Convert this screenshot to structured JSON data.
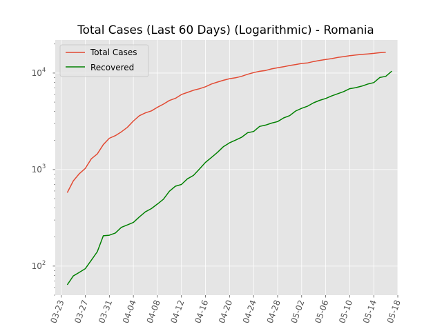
{
  "chart_data": {
    "type": "line",
    "title": "Total Cases (Last 60 Days) (Logarithmic) - Romania",
    "xlabel": "",
    "ylabel": "",
    "yscale": "log",
    "ylim": [
      50,
      22000
    ],
    "xlim": [
      "2020-03-22",
      "2020-05-18"
    ],
    "grid": true,
    "legend_position": "upper-left",
    "x_tick_labels": [
      "03-23",
      "03-27",
      "03-31",
      "04-04",
      "04-08",
      "04-12",
      "04-16",
      "04-20",
      "04-24",
      "04-28",
      "05-02",
      "05-06",
      "05-10",
      "05-14",
      "05-18"
    ],
    "y_tick_labels": [
      {
        "value": 100,
        "label": "10",
        "exp": "2"
      },
      {
        "value": 1000,
        "label": "10",
        "exp": "3"
      },
      {
        "value": 10000,
        "label": "10",
        "exp": "4"
      }
    ],
    "x": [
      "2020-03-24",
      "2020-03-25",
      "2020-03-26",
      "2020-03-27",
      "2020-03-28",
      "2020-03-29",
      "2020-03-30",
      "2020-03-31",
      "2020-04-01",
      "2020-04-02",
      "2020-04-03",
      "2020-04-04",
      "2020-04-05",
      "2020-04-06",
      "2020-04-07",
      "2020-04-08",
      "2020-04-09",
      "2020-04-10",
      "2020-04-11",
      "2020-04-12",
      "2020-04-13",
      "2020-04-14",
      "2020-04-15",
      "2020-04-16",
      "2020-04-17",
      "2020-04-18",
      "2020-04-19",
      "2020-04-20",
      "2020-04-21",
      "2020-04-22",
      "2020-04-23",
      "2020-04-24",
      "2020-04-25",
      "2020-04-26",
      "2020-04-27",
      "2020-04-28",
      "2020-04-29",
      "2020-04-30",
      "2020-05-01",
      "2020-05-02",
      "2020-05-03",
      "2020-05-04",
      "2020-05-05",
      "2020-05-06",
      "2020-05-07",
      "2020-05-08",
      "2020-05-09",
      "2020-05-10",
      "2020-05-11",
      "2020-05-12",
      "2020-05-13",
      "2020-05-14",
      "2020-05-15"
    ],
    "series": [
      {
        "name": "Total Cases",
        "color": "#E24A33",
        "values": [
          576,
          762,
          906,
          1029,
          1292,
          1452,
          1815,
          2109,
          2245,
          2460,
          2738,
          3183,
          3613,
          3864,
          4057,
          4417,
          4761,
          5202,
          5467,
          5990,
          6300,
          6633,
          6879,
          7216,
          7707,
          8067,
          8418,
          8746,
          8936,
          9242,
          9710,
          10096,
          10417,
          10635,
          11036,
          11339,
          11616,
          11978,
          12240,
          12567,
          12732,
          13163,
          13512,
          13837,
          14107,
          14499,
          14811,
          15131,
          15362,
          15588,
          15778,
          16002,
          16247
        ]
      },
      {
        "name": "Recovered",
        "color": "#008000",
        "values": [
          64,
          79,
          86,
          94,
          115,
          141,
          206,
          209,
          220,
          252,
          267,
          283,
          323,
          365,
          394,
          439,
          493,
          597,
          673,
          701,
          802,
          869,
          1014,
          1187,
          1336,
          1508,
          1729,
          1892,
          2019,
          2158,
          2406,
          2478,
          2799,
          2890,
          3032,
          3141,
          3430,
          3621,
          4040,
          4309,
          4541,
          4920,
          5216,
          5454,
          5792,
          6111,
          6423,
          6888,
          7054,
          7322,
          7685,
          7961,
          8987
        ]
      }
    ],
    "series_tail": {
      "Total Cases": {
        "x": [
          "2020-05-16"
        ],
        "values": [
          16437
        ]
      },
      "Recovered": {
        "x": [
          "2020-05-16",
          "2020-05-17"
        ],
        "values": [
          9245,
          10452
        ]
      }
    }
  }
}
